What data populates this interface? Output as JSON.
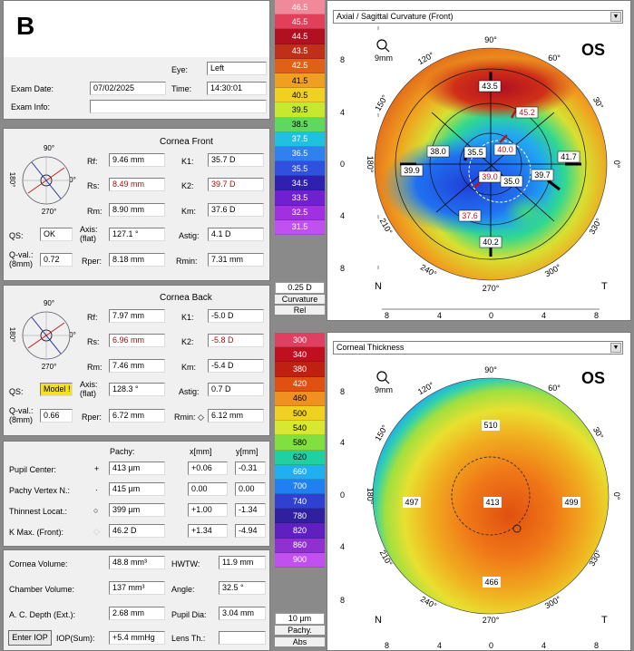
{
  "header": {
    "letter": "B",
    "eye_label": "Eye:",
    "eye_value": "Left",
    "exam_date_label": "Exam Date:",
    "exam_date_value": "07/02/2025",
    "time_label": "Time:",
    "time_value": "14:30:01",
    "exam_info_label": "Exam Info:",
    "exam_info_value": ""
  },
  "cornea_front": {
    "title": "Cornea Front",
    "rf_label": "Rf:",
    "rf": "9.46 mm",
    "rs_label": "Rs:",
    "rs": "8.49 mm",
    "rm_label": "Rm:",
    "rm": "8.90 mm",
    "k1_label": "K1:",
    "k1": "35.7 D",
    "k2_label": "K2:",
    "k2": "39.7 D",
    "km_label": "Km:",
    "km": "37.6 D",
    "qs_label": "QS:",
    "qs": "OK",
    "axis_label": "Axis:",
    "axis_sub": "(flat)",
    "axis": "127.1 °",
    "astig_label": "Astig:",
    "astig": "4.1 D",
    "qval_label": "Q-val.:",
    "qval_sub": "(8mm)",
    "qval": "0.72",
    "rper_label": "Rper:",
    "rper": "8.18 mm",
    "rmin_label": "Rmin:",
    "rmin": "7.31 mm"
  },
  "cornea_back": {
    "title": "Cornea Back",
    "rf_label": "Rf:",
    "rf": "7.97 mm",
    "rs_label": "Rs:",
    "rs": "6.96 mm",
    "rm_label": "Rm:",
    "rm": "7.46 mm",
    "k1_label": "K1:",
    "k1": "-5.0 D",
    "k2_label": "K2:",
    "k2": "-5.8 D",
    "km_label": "Km:",
    "km": "-5.4 D",
    "qs_label": "QS:",
    "qs": "Model !",
    "axis_label": "Axis:",
    "axis_sub": "(flat)",
    "axis": "128.3 °",
    "astig_label": "Astig:",
    "astig": "0.7 D",
    "qval_label": "Q-val.:",
    "qval_sub": "(8mm)",
    "qval": "0.66",
    "rper_label": "Rper:",
    "rper": "6.72 mm",
    "rmin_label": "Rmin: ◇",
    "rmin": "6.12 mm"
  },
  "compass": {
    "top": "90°",
    "bottom": "270°",
    "left": "180°",
    "right": "0°"
  },
  "pachy": {
    "col_pachy": "Pachy:",
    "col_x": "x[mm]",
    "col_y": "y[mm]",
    "rows": [
      {
        "label": "Pupil Center:",
        "sym": "+",
        "pachy": "413 µm",
        "x": "+0.06",
        "y": "-0.31"
      },
      {
        "label": "Pachy Vertex N.:",
        "sym": "·",
        "pachy": "415 µm",
        "x": "0.00",
        "y": "0.00"
      },
      {
        "label": "Thinnest Locat.:",
        "sym": "○",
        "pachy": "399 µm",
        "x": "+1.00",
        "y": "-1.34"
      },
      {
        "label": "K Max. (Front):",
        "sym": "◇",
        "pachy": "46.2 D",
        "x": "+1.34",
        "y": "-4.94"
      }
    ]
  },
  "volumes": {
    "cornea_volume_label": "Cornea Volume:",
    "cornea_volume": "48.8 mm³",
    "hwtw_label": "HWTW:",
    "hwtw": "11.9 mm",
    "chamber_volume_label": "Chamber Volume:",
    "chamber_volume": "137 mm³",
    "angle_label": "Angle:",
    "angle": "32.5 °",
    "acd_label": "A. C. Depth (Ext.):",
    "acd": "2.68 mm",
    "pupil_dia_label": "Pupil Dia:",
    "pupil_dia": "3.04 mm",
    "enter_iop_label": "Enter IOP",
    "iop_sum_label": "IOP(Sum):",
    "iop_sum": "+5.4 mmHg",
    "lens_th_label": "Lens Th.:",
    "lens_th": ""
  },
  "curvature_scale": {
    "values": [
      "46.5",
      "45.5",
      "44.5",
      "43.5",
      "42.5",
      "41.5",
      "40.5",
      "39.5",
      "38.5",
      "37.5",
      "36.5",
      "35.5",
      "34.5",
      "33.5",
      "32.5",
      "31.5"
    ],
    "colors": [
      "#f08a9a",
      "#e0405a",
      "#b01020",
      "#c03018",
      "#e06018",
      "#f0a020",
      "#f0d020",
      "#c8e830",
      "#60d860",
      "#20c0e0",
      "#3080f0",
      "#3050e0",
      "#3020b0",
      "#7020d0",
      "#a030e0",
      "#c050f0"
    ],
    "step": "0.25 D",
    "caption1": "Curvature",
    "caption2": "Rel"
  },
  "thickness_scale": {
    "values": [
      "300",
      "340",
      "380",
      "420",
      "460",
      "500",
      "540",
      "580",
      "620",
      "660",
      "700",
      "740",
      "780",
      "820",
      "860",
      "900"
    ],
    "colors": [
      "#e04060",
      "#c01020",
      "#c02010",
      "#e05010",
      "#f09020",
      "#f0d020",
      "#d8e830",
      "#80e040",
      "#20d0a0",
      "#20b0f0",
      "#2080f0",
      "#3040d0",
      "#3020a0",
      "#6020c0",
      "#9030d0",
      "#c050f0"
    ],
    "step": "10 µm",
    "caption1": "Pachy.",
    "caption2": "Abs"
  },
  "map_top": {
    "dropdown": "Axial / Sagittal Curvature (Front)",
    "eye": "OS",
    "zoom": "9mm",
    "nasal": "N",
    "temporal": "T",
    "values": [
      "43.5",
      "45.2",
      "38.0",
      "35.5",
      "40.0",
      "41.7",
      "39.9",
      "39.0",
      "35.0",
      "39.7",
      "37.6",
      "40.2"
    ],
    "angles": [
      "90°",
      "60°",
      "30°",
      "0°",
      "330°",
      "300°",
      "270°",
      "240°",
      "210°",
      "180°",
      "150°",
      "120°"
    ],
    "ticks": [
      "8",
      "4",
      "0",
      "4",
      "8"
    ]
  },
  "map_bottom": {
    "dropdown": "Corneal Thickness",
    "eye": "OS",
    "zoom": "9mm",
    "nasal": "N",
    "temporal": "T",
    "values": [
      "510",
      "497",
      "413",
      "499",
      "466"
    ],
    "angles": [
      "90°",
      "60°",
      "30°",
      "0°",
      "330°",
      "300°",
      "270°",
      "240°",
      "210°",
      "180°",
      "150°",
      "120°"
    ],
    "ticks": [
      "8",
      "4",
      "0",
      "4",
      "8"
    ]
  }
}
